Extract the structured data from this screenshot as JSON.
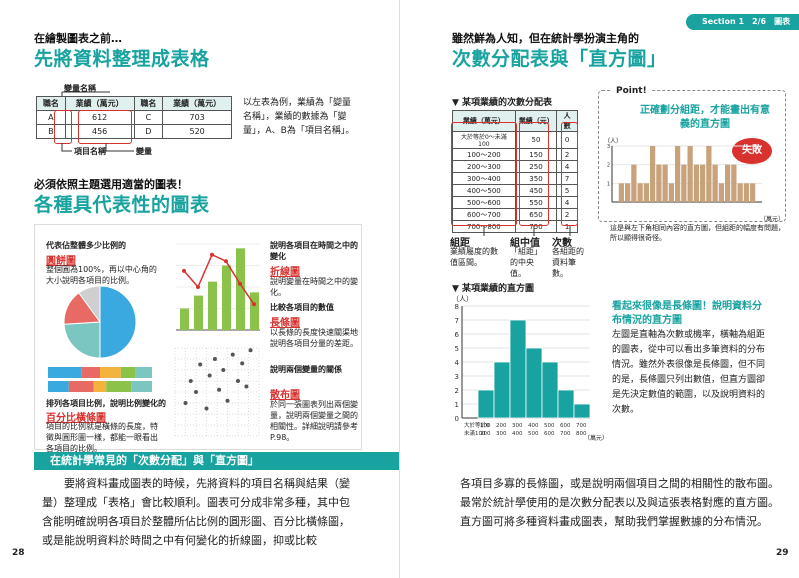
{
  "left_page": {
    "kicker": "在繪製圖表之前…",
    "title": "先將資料整理成表格",
    "table_callout_top": "變量名稱",
    "table_headers": [
      "職名",
      "業績（萬元）",
      "職名",
      "業績（萬元）"
    ],
    "table_rows": [
      [
        "A",
        "612",
        "C",
        "703"
      ],
      [
        "B",
        "456",
        "D",
        "520"
      ]
    ],
    "table_callout_item": "項目名稱",
    "table_callout_variable": "變量",
    "table_explanation": "以左表為例，業績為「變量名稱」，業績的數據為「變量」，A、B為「項目名稱」。",
    "section2_kicker": "必須依照主題選用適當的圖表！",
    "section2_title": "各種具代表性的圖表",
    "pie_caption_top": "代表佔整體多少比例的",
    "pie_name": "圓餅圖",
    "pie_desc": "整個圓為100%，再以中心角的大小說明各項目的比例。",
    "line_caption_top": "說明各項目在時間之中的變化",
    "line_name": "折線圖",
    "line_desc": "說明變量在時間之中的變化。",
    "bar_caption_top": "比較各項目的數值",
    "bar_name": "長條圖",
    "bar_desc": "以長條的長度快速關渠地說明各項目分量的差距。",
    "stack_caption_top": "排列各項目比例，說明比例變化的",
    "stack_name": "百分比橫條圖",
    "stack_desc": "項目的比例就是橫條的長度，特徵與圓形圖一樣，都能一眼看出各項目的比例。",
    "scatter_caption_top": "說明兩個變量的關係",
    "scatter_name": "散布圖",
    "scatter_desc": "於同一張圖表列出兩個變量，說明兩個變量之間的相關性。詳細說明請參考P.98。",
    "band": "在統計學常見的「次數分配」與「直方圖」",
    "body": "要將資料畫成圖表的時候，先將資料的項目名稱與結果（變量）整理成「表格」會比較順利。圖表可分成非常多種，其中包含能明確說明各項目於整體所佔比例的圓形圖、百分比橫條圖，或是能說明資料於時間之中有何變化的折線圖，抑或比較",
    "page_number": "28"
  },
  "right_page": {
    "tab": "Section 1　2/6　圖表",
    "kicker": "雖然鮮為人知，但在統計學扮演主角的",
    "title": "次數分配表與「直方圖」",
    "freq_table_title": "▼ 某項業績的次數分配表",
    "freq_headers": [
      "業績（萬元）",
      "業績（元）",
      "人數"
    ],
    "freq_rows": [
      [
        "大於等於0～未滿100",
        "50",
        "0"
      ],
      [
        "100～200",
        "150",
        "2"
      ],
      [
        "200～300",
        "250",
        "4"
      ],
      [
        "300～400",
        "350",
        "7"
      ],
      [
        "400～500",
        "450",
        "5"
      ],
      [
        "500～600",
        "550",
        "4"
      ],
      [
        "600～700",
        "650",
        "2"
      ],
      [
        "700～800",
        "750",
        "1"
      ]
    ],
    "label_class": "組距",
    "label_class_desc": "業績屬度的數值區間。",
    "label_mid": "組中值",
    "label_mid_desc": "「組距」的中央值。",
    "label_freq": "次數",
    "label_freq_desc": "各組距的資料筆數。",
    "point_label": "Point!",
    "point_text": "正確劃分組距，才能畫出有意義的直方圖",
    "fail_badge": "失敗",
    "fail_ylabel": "（人）",
    "fail_xlabel": "（萬元）",
    "fail_caption": "這是與左下角相同內容的直方圖，但組距的幅度有問題，所以顯得很奇怪。",
    "hist_title": "▼ 某項業績的直方圖",
    "hist_ylabel": "（人）",
    "hist_xlabel": "（萬元）",
    "hist_bottom_labels": [
      "大於等於0",
      "100",
      "200",
      "300",
      "400",
      "500",
      "600",
      "700"
    ],
    "hist_top_labels": [
      "未滿100",
      "200",
      "300",
      "400",
      "500",
      "600",
      "700",
      "800"
    ],
    "hist_note_title": "看起來很像是長條圖！說明資料分布情況的直方圖",
    "hist_note": "左圖是直軸為次數或機率，橫軸為組距的圖表，從中可以看出多筆資料的分布情況。雖然外表很像是長條圖，但不同的是，長條圖只列出數值，但直方圖卻是先決定數值的範圍，以及說明資料的次數。",
    "body": "各項目多寡的長條圖，或是說明兩個項目之間的相關性的散布圖。最常於統計學使用的是次數分配表以及與這張表格對應的直方圖。直方圖可將多種資料畫成圖表，幫助我們掌握數據的分布情況。",
    "page_number": "29"
  },
  "chart_data": [
    {
      "type": "pie",
      "values": [
        50,
        24,
        16,
        10
      ],
      "colors": [
        "#3aa9df",
        "#7cc6c2",
        "#e86a64",
        "#cfcfcf"
      ]
    },
    {
      "type": "bar",
      "values": [
        2,
        3.2,
        4.5,
        6,
        7.6,
        3.5
      ],
      "colors": [
        "#8bc34a"
      ]
    },
    {
      "type": "line",
      "values": [
        5.5,
        4,
        7,
        6.4,
        4.3,
        2.4
      ]
    },
    {
      "type": "bar",
      "stacked_percent": [
        [
          32,
          18,
          20,
          14,
          16
        ],
        [
          20,
          24,
          12,
          24,
          20
        ]
      ],
      "colors": [
        "#3aa9df",
        "#e86a64",
        "#f4b23e",
        "#8bc34a",
        "#7cc6c2"
      ]
    },
    {
      "type": "scatter",
      "points": [
        [
          1,
          3
        ],
        [
          1.5,
          5
        ],
        [
          2,
          4
        ],
        [
          2.4,
          6.5
        ],
        [
          3,
          2.5
        ],
        [
          3.3,
          5.5
        ],
        [
          3.8,
          7
        ],
        [
          4.2,
          4.2
        ],
        [
          4.6,
          6
        ],
        [
          5,
          3.2
        ],
        [
          5.5,
          7.4
        ],
        [
          6,
          5
        ],
        [
          6.4,
          6.6
        ],
        [
          6.8,
          4.5
        ],
        [
          7.2,
          7.8
        ]
      ]
    },
    {
      "type": "bar",
      "title": "▼ 某項業績的直方圖",
      "ylabel": "（人）",
      "xlabel": "（萬元）",
      "categories": [
        "0～100",
        "100～200",
        "200～300",
        "300～400",
        "400～500",
        "500～600",
        "600～700",
        "700～800"
      ],
      "values": [
        0,
        2,
        4,
        7,
        5,
        4,
        2,
        1
      ],
      "ylim": [
        0,
        8
      ],
      "yticks": [
        0,
        1,
        2,
        3,
        4,
        5,
        6,
        7,
        8
      ],
      "colors": [
        "#18a3a0"
      ]
    },
    {
      "type": "bar",
      "ylabel": "（人）",
      "xlabel": "（萬元）",
      "values": [
        0,
        1,
        1,
        2,
        1,
        1,
        3,
        2,
        2,
        1,
        3,
        2,
        3,
        2,
        2,
        3,
        2,
        1,
        2,
        2,
        1,
        1,
        1,
        0
      ],
      "ylim": [
        0,
        3
      ],
      "yticks": [
        1,
        2,
        3
      ],
      "colors": [
        "#c8a27a"
      ]
    }
  ]
}
